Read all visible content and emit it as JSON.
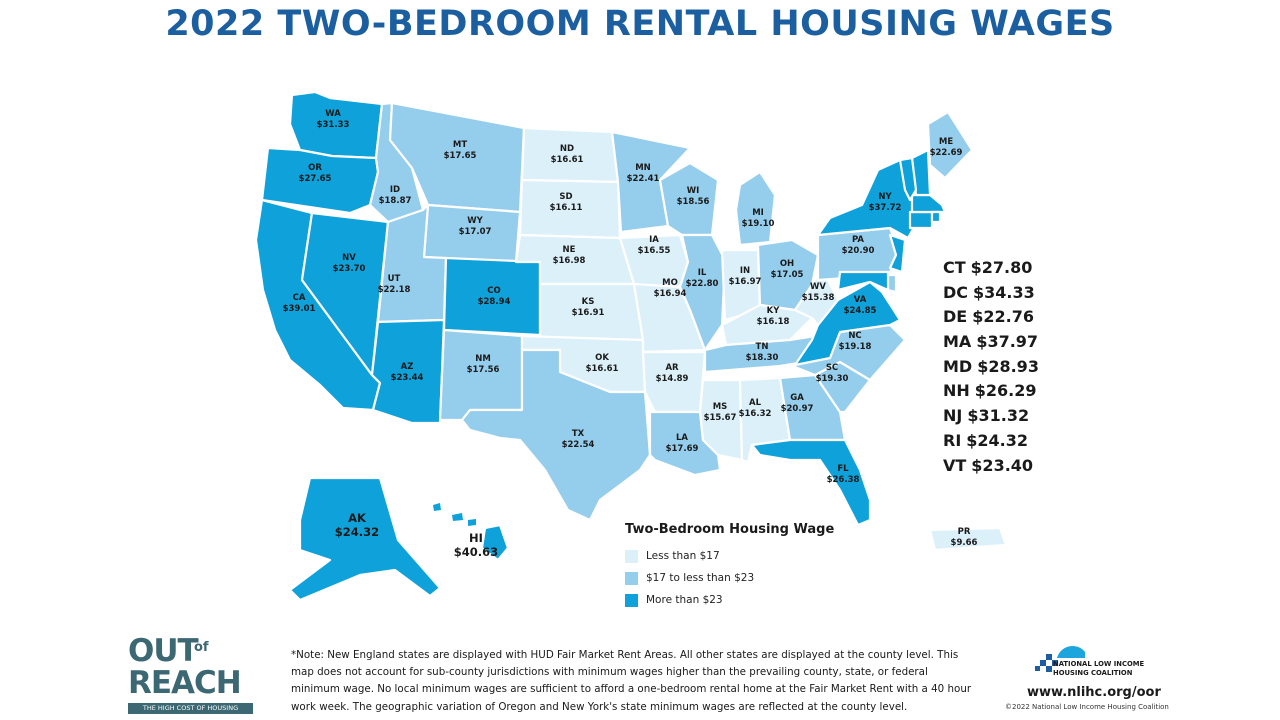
{
  "title": "2022 TWO-BEDROOM RENTAL HOUSING WAGES",
  "colors": {
    "low": "#dcf0fa",
    "mid": "#95cdec",
    "high": "#0fa1d9",
    "title": "#1b5fa0",
    "brand": "#3b6872"
  },
  "map_data": {
    "type": "choropleth",
    "metric": "Two-Bedroom Housing Wage",
    "classes": [
      {
        "key": "low",
        "label": "Less than $17"
      },
      {
        "key": "mid",
        "label": "$17 to less than $23"
      },
      {
        "key": "high",
        "label": "More than $23"
      }
    ],
    "states": [
      {
        "code": "WA",
        "wage": "$31.33",
        "class": "high"
      },
      {
        "code": "OR",
        "wage": "$27.65",
        "class": "high"
      },
      {
        "code": "CA",
        "wage": "$39.01",
        "class": "high"
      },
      {
        "code": "NV",
        "wage": "$23.70",
        "class": "high"
      },
      {
        "code": "ID",
        "wage": "$18.87",
        "class": "mid"
      },
      {
        "code": "MT",
        "wage": "$17.65",
        "class": "mid"
      },
      {
        "code": "WY",
        "wage": "$17.07",
        "class": "mid"
      },
      {
        "code": "UT",
        "wage": "$22.18",
        "class": "mid"
      },
      {
        "code": "AZ",
        "wage": "$23.44",
        "class": "high"
      },
      {
        "code": "CO",
        "wage": "$28.94",
        "class": "high"
      },
      {
        "code": "NM",
        "wage": "$17.56",
        "class": "mid"
      },
      {
        "code": "ND",
        "wage": "$16.61",
        "class": "low"
      },
      {
        "code": "SD",
        "wage": "$16.11",
        "class": "low"
      },
      {
        "code": "NE",
        "wage": "$16.98",
        "class": "low"
      },
      {
        "code": "KS",
        "wage": "$16.91",
        "class": "low"
      },
      {
        "code": "OK",
        "wage": "$16.61",
        "class": "low"
      },
      {
        "code": "TX",
        "wage": "$22.54",
        "class": "mid"
      },
      {
        "code": "MN",
        "wage": "$22.41",
        "class": "mid"
      },
      {
        "code": "IA",
        "wage": "$16.55",
        "class": "low"
      },
      {
        "code": "MO",
        "wage": "$16.94",
        "class": "low"
      },
      {
        "code": "AR",
        "wage": "$14.89",
        "class": "low"
      },
      {
        "code": "LA",
        "wage": "$17.69",
        "class": "mid"
      },
      {
        "code": "WI",
        "wage": "$18.56",
        "class": "mid"
      },
      {
        "code": "IL",
        "wage": "$22.80",
        "class": "mid"
      },
      {
        "code": "MI",
        "wage": "$19.10",
        "class": "mid"
      },
      {
        "code": "IN",
        "wage": "$16.97",
        "class": "low"
      },
      {
        "code": "OH",
        "wage": "$17.05",
        "class": "mid"
      },
      {
        "code": "KY",
        "wage": "$16.18",
        "class": "low"
      },
      {
        "code": "TN",
        "wage": "$18.30",
        "class": "mid"
      },
      {
        "code": "MS",
        "wage": "$15.67",
        "class": "low"
      },
      {
        "code": "AL",
        "wage": "$16.32",
        "class": "low"
      },
      {
        "code": "GA",
        "wage": "$20.97",
        "class": "mid"
      },
      {
        "code": "FL",
        "wage": "$26.38",
        "class": "high"
      },
      {
        "code": "SC",
        "wage": "$19.30",
        "class": "mid"
      },
      {
        "code": "NC",
        "wage": "$19.18",
        "class": "mid"
      },
      {
        "code": "VA",
        "wage": "$24.85",
        "class": "high"
      },
      {
        "code": "WV",
        "wage": "$15.38",
        "class": "low"
      },
      {
        "code": "PA",
        "wage": "$20.90",
        "class": "mid"
      },
      {
        "code": "NY",
        "wage": "$37.72",
        "class": "high"
      },
      {
        "code": "ME",
        "wage": "$22.69",
        "class": "mid"
      },
      {
        "code": "AK",
        "wage": "$24.32",
        "class": "high"
      },
      {
        "code": "HI",
        "wage": "$40.63",
        "class": "high"
      },
      {
        "code": "PR",
        "wage": "$9.66",
        "class": "low"
      }
    ],
    "small_states": [
      {
        "code": "CT",
        "wage": "$27.80",
        "class": "high"
      },
      {
        "code": "DC",
        "wage": "$34.33",
        "class": "high"
      },
      {
        "code": "DE",
        "wage": "$22.76",
        "class": "mid"
      },
      {
        "code": "MA",
        "wage": "$37.97",
        "class": "high"
      },
      {
        "code": "MD",
        "wage": "$28.93",
        "class": "high"
      },
      {
        "code": "NH",
        "wage": "$26.29",
        "class": "high"
      },
      {
        "code": "NJ",
        "wage": "$31.32",
        "class": "high"
      },
      {
        "code": "RI",
        "wage": "$24.32",
        "class": "high"
      },
      {
        "code": "VT",
        "wage": "$23.40",
        "class": "high"
      }
    ]
  },
  "legend": {
    "title": "Two-Bedroom Housing Wage",
    "items": [
      {
        "key": "low",
        "label": "Less than $17"
      },
      {
        "key": "mid",
        "label": "$17 to less than $23"
      },
      {
        "key": "high",
        "label": "More than $23"
      }
    ]
  },
  "note": "*Note: New England states are displayed with HUD Fair Market Rent Areas. All other states are displayed at the county level. This map does not account for sub-county jurisdictions with minimum wages higher than the prevailing county, state, or federal minimum wage. No local minimum wages are sufficient to afford a one-bedroom rental home at the Fair Market Rent with a 40 hour work week. The geographic variation of Oregon and New York's state minimum wages are reflected at the county level.",
  "logo": {
    "out": "OUT",
    "of": "of",
    "reach": "REACH",
    "tagline": "THE HIGH COST OF HOUSING"
  },
  "org": {
    "name_line1": "NATIONAL LOW INCOME",
    "name_line2": "HOUSING COALITION",
    "url": "www.nlihc.org/oor",
    "copyright": "©2022 National Low Income Housing Coalition"
  }
}
